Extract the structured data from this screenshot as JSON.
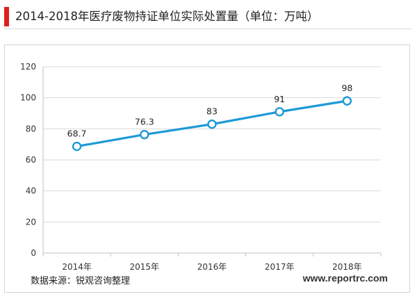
{
  "title": "2014-2018年医疗废物持证单位实际处置量（单位：万吨）",
  "source": "数据来源：锐观咨询整理",
  "watermark": "www.reportrc.com",
  "colors": {
    "accent": "#e02020",
    "line": "#1e9ad6",
    "grid": "#d9d9d9",
    "text": "#222222"
  },
  "chart_data": {
    "type": "line",
    "categories": [
      "2014年",
      "2015年",
      "2016年",
      "2017年",
      "2018年"
    ],
    "series": [
      {
        "values": [
          68.7,
          76.3,
          83,
          91,
          98
        ]
      }
    ],
    "data_labels": [
      "68.7",
      "76.3",
      "83",
      "91",
      "98"
    ],
    "yticks": [
      0,
      20,
      40,
      60,
      80,
      100,
      120
    ],
    "ylim": [
      0,
      120
    ],
    "grid": true,
    "legend": "none",
    "marker": "hollow-circle"
  }
}
